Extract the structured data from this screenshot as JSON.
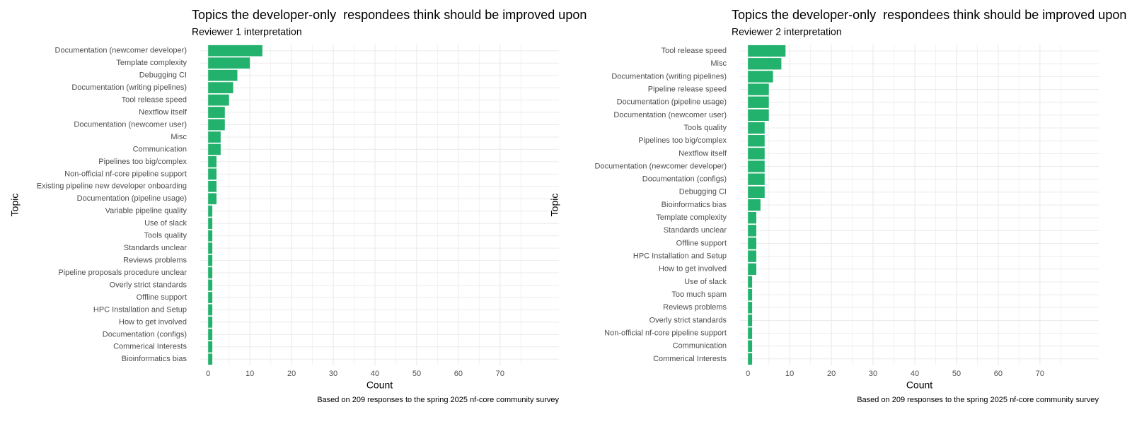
{
  "chart_data": [
    {
      "type": "barh",
      "title": "Topics the developer-only  respondees think should be improved upon",
      "subtitle": "Reviewer 1 interpretation",
      "x_label": "Count",
      "y_label": "Topic",
      "caption": "Based on 209 responses to the spring 2025 nf-core community survey",
      "color": "#23b26d",
      "grid": true,
      "xlim": [
        -1.9,
        84.1
      ],
      "xticks": [
        0,
        10,
        20,
        30,
        40,
        50,
        60,
        70
      ],
      "minor_xticks": [
        5,
        15,
        25,
        35,
        45,
        55,
        65,
        75
      ],
      "categories": [
        "Documentation (newcomer developer)",
        "Template complexity",
        "Debugging CI",
        "Documentation (writing pipelines)",
        "Tool release speed",
        "Nextflow itself",
        "Documentation (newcomer user)",
        "Misc",
        "Communication",
        "Pipelines too big/complex",
        "Non-official nf-core pipeline support",
        "Existing pipeline new developer onboarding",
        "Documentation (pipeline usage)",
        "Variable pipeline quality",
        "Use of slack",
        "Tools quality",
        "Standards unclear",
        "Reviews problems",
        "Pipeline proposals procedure unclear",
        "Overly strict standards",
        "Offline support",
        "HPC Installation and Setup",
        "How to get involved",
        "Documentation (configs)",
        "Commerical Interests",
        "Bioinformatics bias"
      ],
      "values": [
        13,
        10,
        7,
        6,
        5,
        4,
        4,
        3,
        3,
        2,
        2,
        2,
        2,
        1,
        1,
        1,
        1,
        1,
        1,
        1,
        1,
        1,
        1,
        1,
        1,
        1
      ]
    },
    {
      "type": "barh",
      "title": "Topics the developer-only  respondees think should be improved upon",
      "subtitle": "Reviewer 2 interpretation",
      "x_label": "Count",
      "y_label": "Topic",
      "caption": "Based on 209 responses to the spring 2025 nf-core community survey",
      "color": "#23b26d",
      "grid": true,
      "xlim": [
        -1.9,
        84.1
      ],
      "xticks": [
        0,
        10,
        20,
        30,
        40,
        50,
        60,
        70
      ],
      "minor_xticks": [
        5,
        15,
        25,
        35,
        45,
        55,
        65,
        75
      ],
      "categories": [
        "Tool release speed",
        "Misc",
        "Documentation (writing pipelines)",
        "Pipeline release speed",
        "Documentation (pipeline usage)",
        "Documentation (newcomer user)",
        "Tools quality",
        "Pipelines too big/complex",
        "Nextflow itself",
        "Documentation (newcomer developer)",
        "Documentation (configs)",
        "Debugging CI",
        "Bioinformatics bias",
        "Template complexity",
        "Standards unclear",
        "Offline support",
        "HPC Installation and Setup",
        "How to get involved",
        "Use of slack",
        "Too much spam",
        "Reviews problems",
        "Overly strict standards",
        "Non-official nf-core pipeline support",
        "Communication",
        "Commerical Interests"
      ],
      "values": [
        9,
        8,
        6,
        5,
        5,
        5,
        4,
        4,
        4,
        4,
        4,
        4,
        3,
        2,
        2,
        2,
        2,
        2,
        1,
        1,
        1,
        1,
        1,
        1,
        1
      ]
    }
  ]
}
